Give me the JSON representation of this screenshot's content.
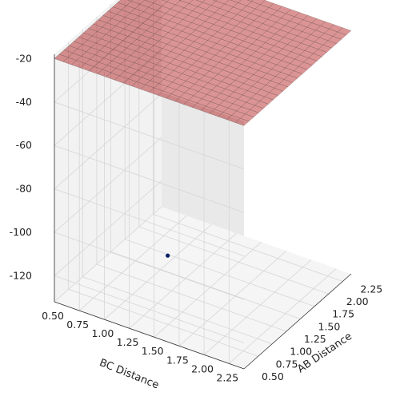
{
  "chart_data": {
    "type": "surface3d",
    "title": "",
    "xlabel": "AB Distance",
    "ylabel": "BC Distance",
    "zlabel": "",
    "x_ticks": [
      "0.50",
      "0.75",
      "1.00",
      "1.25",
      "1.50",
      "1.75",
      "2.00",
      "2.25"
    ],
    "y_ticks": [
      "0.50",
      "0.75",
      "1.00",
      "1.25",
      "1.50",
      "1.75",
      "2.00",
      "2.25"
    ],
    "z_ticks": [
      "-20",
      "-40",
      "-60",
      "-80",
      "-100",
      "-120"
    ],
    "xlim": [
      0.5,
      2.4
    ],
    "ylim": [
      0.5,
      2.4
    ],
    "zlim": [
      -132,
      -18
    ],
    "surface_colormap": "jet (semi-transparent, clipped at -20)",
    "contour_colormap": "viridis",
    "contour_offset_z": -132,
    "marked_point": {
      "x": 0.74,
      "y": 1.5,
      "z": -100
    },
    "grid": true,
    "colors": {
      "pane_left": "#e9e9e9",
      "pane_right": "#f2f2f2",
      "pane_floor": "#f5f5f5",
      "marker": "#0b1f66"
    }
  }
}
